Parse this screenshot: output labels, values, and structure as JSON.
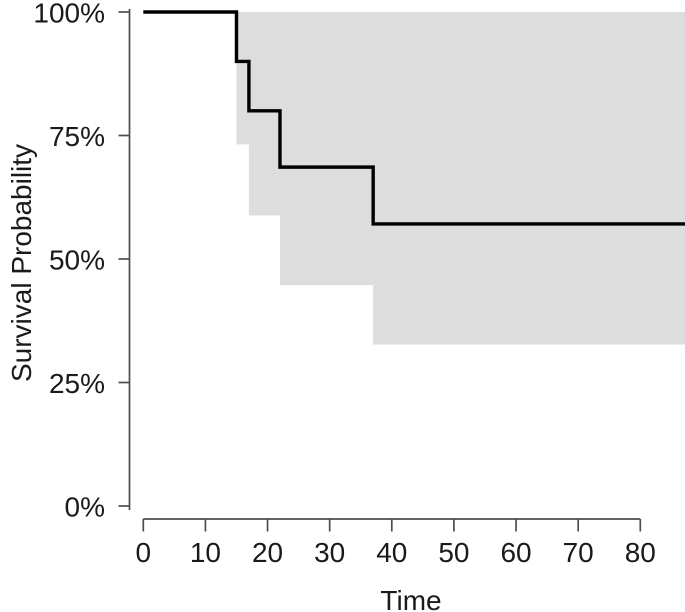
{
  "chart_data": {
    "type": "line",
    "subtype": "kaplan-meier-survival-step",
    "title": "",
    "xlabel": "Time",
    "ylabel": "Survival Probability",
    "xlim": [
      0,
      87.3
    ],
    "ylim": [
      0,
      1
    ],
    "x_ticks": [
      {
        "value": 0,
        "label": "0"
      },
      {
        "value": 10,
        "label": "10"
      },
      {
        "value": 20,
        "label": "20"
      },
      {
        "value": 30,
        "label": "30"
      },
      {
        "value": 40,
        "label": "40"
      },
      {
        "value": 50,
        "label": "50"
      },
      {
        "value": 60,
        "label": "60"
      },
      {
        "value": 70,
        "label": "70"
      },
      {
        "value": 80,
        "label": "80"
      }
    ],
    "y_ticks": [
      {
        "value": 0,
        "label": "0%"
      },
      {
        "value": 0.25,
        "label": "25%"
      },
      {
        "value": 0.5,
        "label": "50%"
      },
      {
        "value": 0.75,
        "label": "75%"
      },
      {
        "value": 1,
        "label": "100%"
      }
    ],
    "grid": false,
    "legend": null,
    "series": [
      {
        "name": "survival-curve",
        "step": "after",
        "color": "#000000",
        "stroke_width": 3.4,
        "points": [
          {
            "time": 0,
            "survival": 1.0
          },
          {
            "time": 15,
            "survival": 0.9
          },
          {
            "time": 17,
            "survival": 0.8
          },
          {
            "time": 22,
            "survival": 0.686
          },
          {
            "time": 37,
            "survival": 0.571
          },
          {
            "time": 87.3,
            "survival": 0.571
          }
        ]
      }
    ],
    "confidence_band": {
      "name": "95%-confidence-interval",
      "fill": "#dddddd",
      "steps": [
        {
          "time": 15,
          "upper": 1.0,
          "lower": 0.732
        },
        {
          "time": 17,
          "upper": 1.0,
          "lower": 0.588
        },
        {
          "time": 22,
          "upper": 1.0,
          "lower": 0.447
        },
        {
          "time": 37,
          "upper": 1.0,
          "lower": 0.327
        },
        {
          "time": 87.3,
          "upper": 1.0,
          "lower": 0.327
        }
      ]
    },
    "colors": {
      "axis_line": "#4d4d4d",
      "tick_mark": "#4d4d4d",
      "text": "#1a1a1a",
      "background": "#ffffff"
    }
  }
}
